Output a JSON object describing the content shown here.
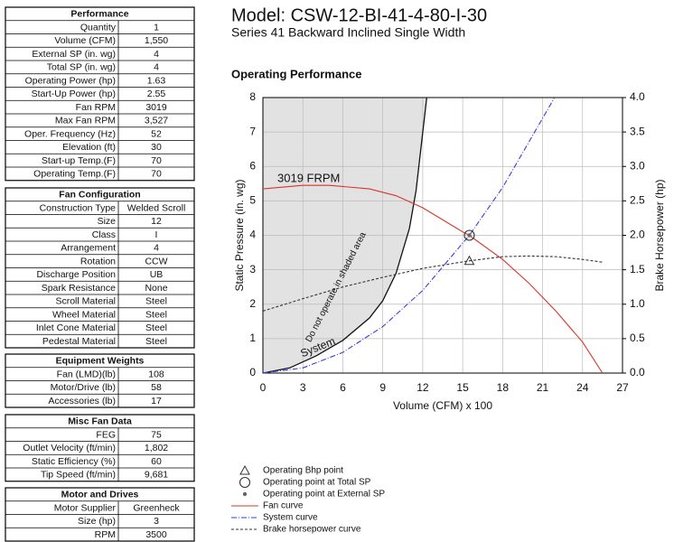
{
  "tables": [
    {
      "title": "Performance",
      "rows": [
        [
          "Quantity",
          "1"
        ],
        [
          "Volume (CFM)",
          "1,550"
        ],
        [
          "External SP (in. wg)",
          "4"
        ],
        [
          "Total SP (in. wg)",
          "4"
        ],
        [
          "Operating Power (hp)",
          "1.63"
        ],
        [
          "Start-Up Power (hp)",
          "2.55"
        ],
        [
          "Fan RPM",
          "3019"
        ],
        [
          "Max Fan RPM",
          "3,527"
        ],
        [
          "Oper. Frequency (Hz)",
          "52"
        ],
        [
          "Elevation (ft)",
          "30"
        ],
        [
          "Start-up Temp.(F)",
          "70"
        ],
        [
          "Operating Temp.(F)",
          "70"
        ]
      ]
    },
    {
      "title": "Fan Configuration",
      "rows": [
        [
          "Construction Type",
          "Welded Scroll"
        ],
        [
          "Size",
          "12"
        ],
        [
          "Class",
          "I"
        ],
        [
          "Arrangement",
          "4"
        ],
        [
          "Rotation",
          "CCW"
        ],
        [
          "Discharge Position",
          "UB"
        ],
        [
          "Spark Resistance",
          "None"
        ],
        [
          "Scroll Material",
          "Steel"
        ],
        [
          "Wheel Material",
          "Steel"
        ],
        [
          "Inlet Cone Material",
          "Steel"
        ],
        [
          "Pedestal Material",
          "Steel"
        ]
      ]
    },
    {
      "title": "Equipment Weights",
      "rows": [
        [
          "Fan (LMD)(lb)",
          "108"
        ],
        [
          "Motor/Drive (lb)",
          "58"
        ],
        [
          "Accessories (lb)",
          "17"
        ]
      ]
    },
    {
      "title": "Misc Fan Data",
      "rows": [
        [
          "FEG",
          "75"
        ],
        [
          "Outlet Velocity (ft/min)",
          "1,802"
        ],
        [
          "Static Efficiency (%)",
          "60"
        ],
        [
          "Tip Speed (ft/min)",
          "9,681"
        ]
      ]
    },
    {
      "title": "Motor and Drives",
      "rows": [
        [
          "Motor Supplier",
          "Greenheck"
        ],
        [
          "Size (hp)",
          "3"
        ],
        [
          "RPM",
          "3500"
        ]
      ]
    }
  ],
  "chart_data": {
    "type": "line",
    "title": "Model: CSW-12-BI-41-4-80-I-30",
    "subtitle": "Series 41 Backward Inclined Single Width",
    "heading": "Operating Performance",
    "x_label": "Volume (CFM) x 100",
    "y_label": "Static Pressure (in. wg)",
    "y2_label": "Brake Horsepower (hp)",
    "xlim": [
      0,
      27
    ],
    "xticks": [
      0,
      3,
      6,
      9,
      12,
      15,
      18,
      21,
      24,
      27
    ],
    "ylim": [
      0,
      8
    ],
    "yticks": [
      0,
      1,
      2,
      3,
      4,
      5,
      6,
      7,
      8
    ],
    "y2lim": [
      0,
      4
    ],
    "y2ticks": [
      {
        "value": 0,
        "label": "0.0"
      },
      0.5,
      {
        "value": 1,
        "label": "1.0"
      },
      1.5,
      {
        "value": 2,
        "label": "2.0"
      },
      2.5,
      {
        "value": 3,
        "label": "3.0"
      },
      3.5,
      {
        "value": 4,
        "label": "4.0"
      }
    ],
    "grid": true,
    "points": [
      {
        "name": "Operating Bhp point",
        "x": 15.5,
        "y": 1.63,
        "axis": "y2",
        "marker": "triangle"
      },
      {
        "name": "Operating point at Total SP",
        "x": 15.5,
        "y": 4,
        "marker": "circle"
      },
      {
        "name": "Operating point at External SP",
        "x": 15.5,
        "y": 4,
        "marker": "dot"
      }
    ],
    "series": [
      {
        "name": "Fan curve",
        "color": "#d9352a",
        "dash": "solid",
        "x": [
          0,
          3,
          5,
          8,
          10,
          12,
          15,
          15.5,
          18,
          20,
          22,
          24,
          25.5
        ],
        "values": [
          5.35,
          5.45,
          5.45,
          5.35,
          5.15,
          4.8,
          4.1,
          4,
          3.3,
          2.6,
          1.8,
          0.9,
          0
        ]
      },
      {
        "name": "System curve",
        "color": "#3b3bdc",
        "dash": "dashdot",
        "x": [
          0,
          3,
          6,
          9,
          12,
          15.5,
          18,
          21.9
        ],
        "values": [
          0,
          0.15,
          0.6,
          1.35,
          2.4,
          4,
          5.39,
          8
        ]
      },
      {
        "name": "Brake horsepower curve",
        "color": "#333333",
        "dash": "dashed",
        "axis": "y2",
        "x": [
          0,
          3,
          6,
          9,
          12,
          15.5,
          18,
          20,
          22,
          24,
          25.5
        ],
        "values": [
          0.9,
          1.08,
          1.25,
          1.39,
          1.52,
          1.63,
          1.69,
          1.7,
          1.69,
          1.65,
          1.61
        ]
      }
    ],
    "stall_curve": {
      "x": [
        0,
        2,
        4,
        6,
        8,
        9,
        10,
        11,
        11.5,
        12.3
      ],
      "values": [
        0,
        0.15,
        0.5,
        0.95,
        1.6,
        2.1,
        2.9,
        4.2,
        5.3,
        8
      ]
    },
    "annotations": [
      "3019  FRPM",
      "Do not operate in shaded area",
      "System"
    ]
  }
}
